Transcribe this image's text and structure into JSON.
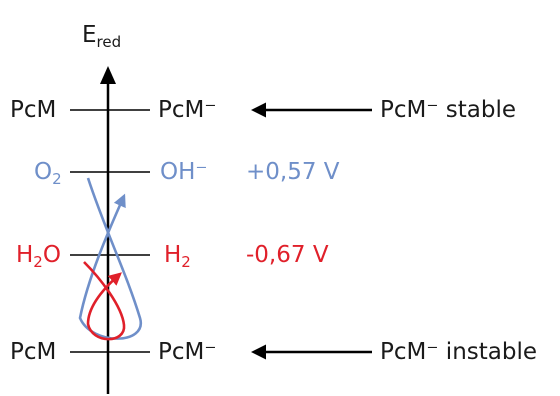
{
  "axis": {
    "label_main": "E",
    "label_sub": "red"
  },
  "levels": {
    "top": {
      "left": "PcM",
      "right": "PcM⁻",
      "note": "PcM⁻ stable"
    },
    "oxygen": {
      "left_main": "O",
      "left_sub": "2",
      "right": "OH⁻",
      "potential": "+0,57 V"
    },
    "hydrogen": {
      "left_main": "H",
      "left_sub": "2",
      "left_tail": "O",
      "right_main": "H",
      "right_sub": "2",
      "potential": "-0,67 V"
    },
    "bottom": {
      "left": "PcM",
      "right": "PcM⁻",
      "note": "PcM⁻ instable"
    }
  },
  "colors": {
    "axis": "#000000",
    "oxygen": "#6f8fc9",
    "hydrogen": "#e0202a",
    "text": "#1a1a1a"
  }
}
